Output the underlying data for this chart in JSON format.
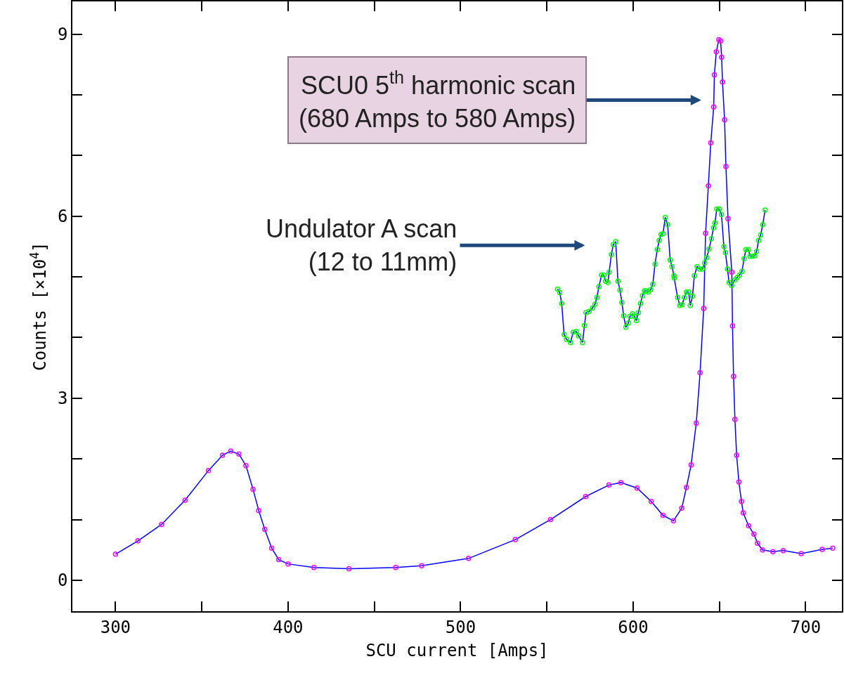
{
  "chart_data": {
    "type": "line",
    "xlabel": "SCU current [Amps]",
    "ylabel": "Counts [×10$^{4}$]",
    "xlim": [
      275,
      721
    ],
    "ylim": [
      -0.51,
      9.54
    ],
    "xticks": [
      300,
      {
        "value": 350,
        "label": null
      },
      400,
      {
        "value": 450,
        "label": null
      },
      500,
      {
        "value": 550,
        "label": null
      },
      600,
      {
        "value": 650,
        "label": null
      },
      700
    ],
    "yticks": [
      0,
      {
        "value": 1,
        "label": null
      },
      {
        "value": 2,
        "label": null
      },
      3,
      {
        "value": 4,
        "label": null
      },
      {
        "value": 5,
        "label": null
      },
      6,
      {
        "value": 7,
        "label": null
      },
      {
        "value": 8,
        "label": null
      },
      9
    ],
    "marker": "circle",
    "line_style": "solid",
    "series": [
      {
        "color": "#ff00ff",
        "x": [
          300,
          313,
          326.7,
          340.3,
          353.9,
          362,
          366.8,
          371.5,
          375.6,
          379.7,
          383,
          386.5,
          390.5,
          394.6,
          400,
          415,
          435.3,
          462.4,
          477.4,
          504.6,
          531.7,
          552.1,
          572.5,
          586,
          592.9,
          602.3,
          610.5,
          617.3,
          623.4,
          628.2,
          630.9,
          633.6,
          636.6,
          638.8,
          640.9,
          642,
          643.6,
          645,
          646.7,
          647.1,
          648.2,
          649.7,
          650.7,
          651.3,
          651.8,
          653,
          653.8,
          655,
          657.2,
          657.6,
          658.2,
          659,
          660,
          661.3,
          662.8,
          663.8,
          666.9,
          670,
          672.1,
          675,
          681,
          687,
          697.4,
          709.6,
          715.7
        ],
        "values": [
          0.43,
          0.65,
          0.92,
          1.32,
          1.81,
          2.06,
          2.13,
          2.08,
          1.89,
          1.5,
          1.15,
          0.84,
          0.53,
          0.34,
          0.27,
          0.21,
          0.19,
          0.21,
          0.24,
          0.36,
          0.67,
          1.0,
          1.38,
          1.57,
          1.61,
          1.52,
          1.3,
          1.07,
          0.98,
          1.19,
          1.53,
          1.9,
          2.59,
          3.42,
          4.48,
          5.72,
          6.5,
          7.21,
          7.8,
          8.33,
          8.71,
          8.91,
          8.89,
          8.62,
          8.21,
          7.59,
          6.82,
          5.96,
          5.08,
          4.19,
          3.36,
          2.65,
          2.06,
          1.62,
          1.3,
          1.11,
          0.9,
          0.76,
          0.61,
          0.5,
          0.47,
          0.49,
          0.44,
          0.51,
          0.53
        ]
      },
      {
        "color": "#00ff00",
        "x": [
          556.2,
          557.5,
          558.6,
          560,
          561.4,
          563.7,
          565.3,
          567.1,
          568.4,
          570.7,
          571.8,
          572.7,
          574.5,
          576.5,
          577.9,
          579,
          580.2,
          581.7,
          583.1,
          584,
          585.4,
          586.1,
          587.4,
          588.5,
          589.9,
          591.2,
          592.4,
          593.5,
          594.5,
          595.8,
          597.2,
          598.2,
          599.6,
          600.7,
          601.9,
          603,
          604.3,
          605.4,
          606.6,
          607.8,
          608.8,
          610.2,
          611.4,
          612.7,
          614,
          615.1,
          616.2,
          617.3,
          618.6,
          620,
          621.5,
          622.5,
          623.7,
          623.8,
          625.8,
          627.1,
          628.4,
          629.7,
          630.9,
          632.2,
          633.1,
          634.4,
          635.5,
          637.1,
          638.6,
          640.1,
          641.5,
          642.7,
          644,
          645.4,
          646.6,
          647.4,
          648.5,
          649.9,
          651.2,
          652.6,
          653.5,
          654.7,
          655.6,
          657.1,
          659,
          660.3,
          661.7,
          663.1,
          664.3,
          665.4,
          666.8,
          667.8,
          669.2,
          670.5,
          671.6,
          672.7,
          673.9,
          675.1,
          676.5
        ],
        "values": [
          4.8,
          4.74,
          4.56,
          4.05,
          3.97,
          3.92,
          4.09,
          4.1,
          4.03,
          3.92,
          4.2,
          4.41,
          4.43,
          4.49,
          4.55,
          4.66,
          4.84,
          5.03,
          5.03,
          4.93,
          4.91,
          5.08,
          5.37,
          5.53,
          5.58,
          4.93,
          4.78,
          4.58,
          4.36,
          4.17,
          4.24,
          4.35,
          4.39,
          4.35,
          4.28,
          4.41,
          4.56,
          4.69,
          4.77,
          4.77,
          4.75,
          4.79,
          4.88,
          5.21,
          5.45,
          5.6,
          5.7,
          5.71,
          5.98,
          5.86,
          5.28,
          5.17,
          5.02,
          4.98,
          4.66,
          4.53,
          4.54,
          4.66,
          4.75,
          4.75,
          4.53,
          4.68,
          5.02,
          5.17,
          5.13,
          5.13,
          5.23,
          5.32,
          5.46,
          5.63,
          5.81,
          5.89,
          6.12,
          6.12,
          6.03,
          5.5,
          5.4,
          5.13,
          4.91,
          4.86,
          4.95,
          4.99,
          5.03,
          5.09,
          5.3,
          5.45,
          5.45,
          5.34,
          5.34,
          5.35,
          5.42,
          5.6,
          5.69,
          5.86,
          6.1
        ]
      }
    ],
    "annotations": [
      "SCU0 5$^{th}$ harmonic scan\n(680 Amps to 580 Amps)",
      "Undulator A scan\n(12 to 11mm)"
    ]
  }
}
